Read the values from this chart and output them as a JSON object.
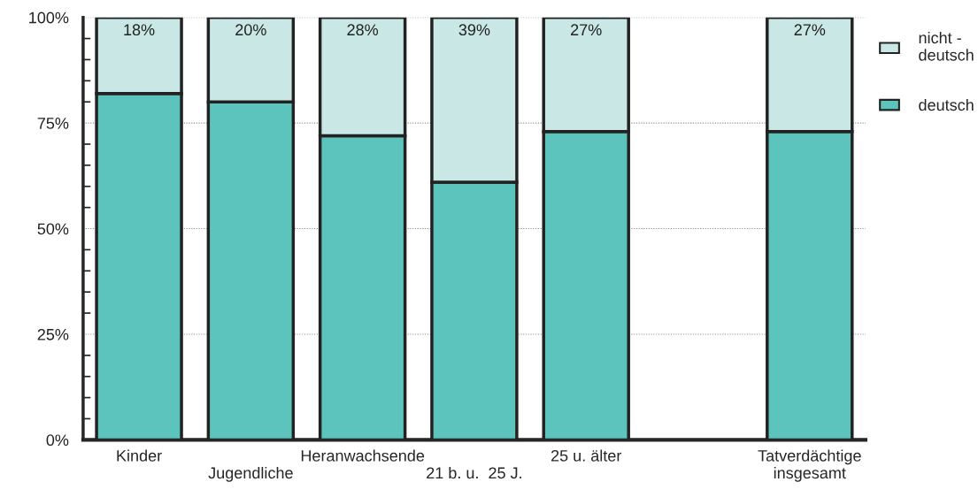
{
  "chart_data": {
    "type": "bar",
    "stacked": true,
    "categories": [
      "Kinder",
      "Jugendliche",
      "Heranwachsende",
      "21 b. u.  25 J.",
      "25 u. älter",
      null,
      "Tatverdächtige\ninsgesamt"
    ],
    "series": [
      {
        "name": "deutsch",
        "color": "#5cc4bc",
        "values": [
          82,
          80,
          72,
          61,
          73,
          null,
          73
        ]
      },
      {
        "name": "nicht -\ndeutsch",
        "color": "#c9e8e5",
        "values": [
          18,
          20,
          28,
          39,
          27,
          null,
          27
        ],
        "value_labels": [
          "18%",
          "20%",
          "28%",
          "39%",
          "27%",
          null,
          "27%"
        ]
      }
    ],
    "ylim": [
      0,
      100
    ],
    "yticks": [
      {
        "value": 0,
        "label": "0%"
      },
      {
        "value": 5,
        "label": null
      },
      {
        "value": 10,
        "label": null
      },
      {
        "value": 15,
        "label": null
      },
      {
        "value": 20,
        "label": null
      },
      {
        "value": 25,
        "label": "25%"
      },
      {
        "value": 30,
        "label": null
      },
      {
        "value": 35,
        "label": null
      },
      {
        "value": 40,
        "label": null
      },
      {
        "value": 45,
        "label": null
      },
      {
        "value": 50,
        "label": "50%"
      },
      {
        "value": 55,
        "label": null
      },
      {
        "value": 60,
        "label": null
      },
      {
        "value": 65,
        "label": null
      },
      {
        "value": 70,
        "label": null
      },
      {
        "value": 75,
        "label": "75%"
      },
      {
        "value": 80,
        "label": null
      },
      {
        "value": 85,
        "label": null
      },
      {
        "value": 90,
        "label": null
      },
      {
        "value": 95,
        "label": null
      },
      {
        "value": 100,
        "label": "100%"
      }
    ],
    "grid": "y",
    "legend": "right"
  }
}
